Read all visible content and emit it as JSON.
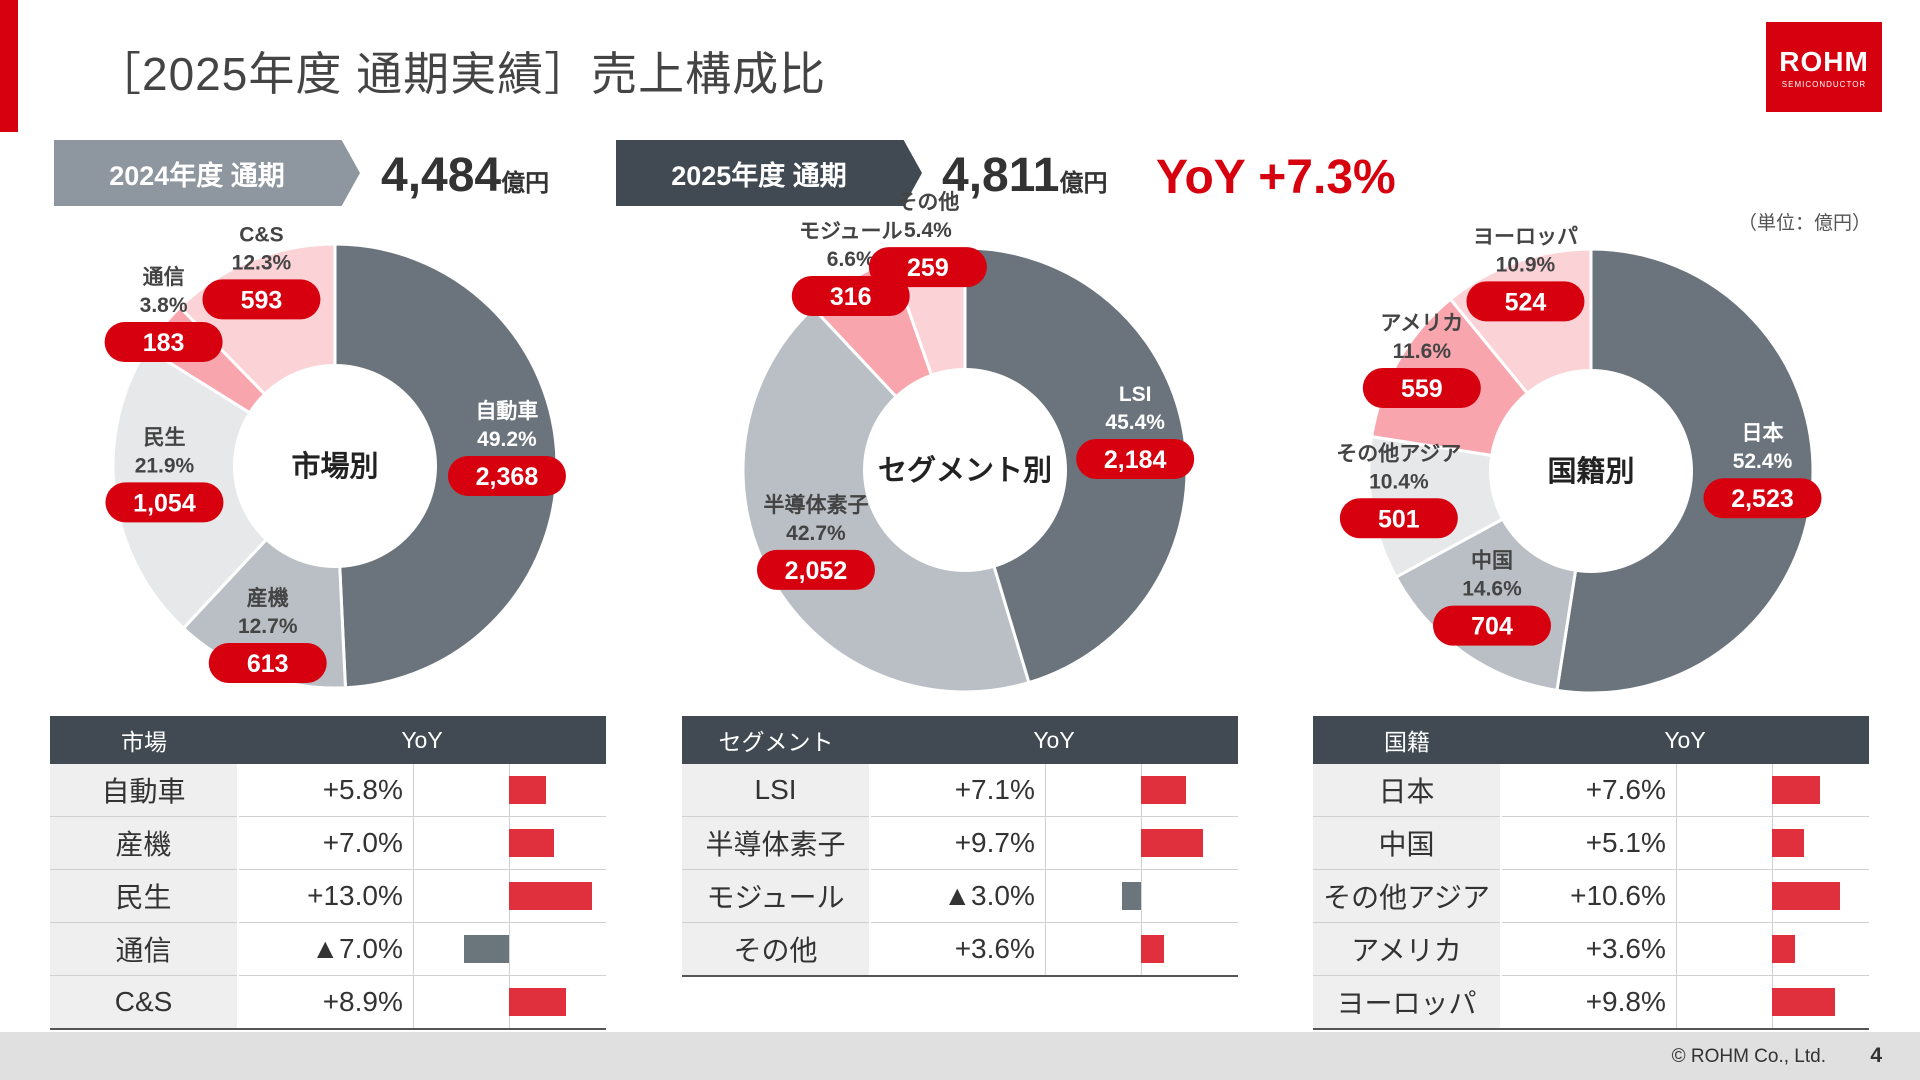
{
  "title": "［2025年度 通期実績］売上構成比",
  "logo": {
    "main": "ROHM",
    "sub": "SEMICONDUCTOR"
  },
  "header": {
    "prev_label": "2024年度 通期",
    "prev_total": "4,484",
    "curr_label": "2025年度 通期",
    "curr_total": "4,811",
    "unit": "億円",
    "yoy": "YoY +7.3%"
  },
  "unit_note": "（単位：億円）",
  "colors": {
    "accent": "#d7000f",
    "dark": "#6b747c",
    "light_gray": "#b9bfc5",
    "pale_gray": "#e6e8ea",
    "pink": "#f8a5ad",
    "pale_pink": "#fbd3d7"
  },
  "chart_data": [
    {
      "type": "pie",
      "center_label": "市場別",
      "slices": [
        {
          "name": "自動車",
          "pct": 49.2,
          "value": 2368,
          "value_label": "2,368",
          "pct_label": "49.2%",
          "color": "#6b747c"
        },
        {
          "name": "産機",
          "pct": 12.7,
          "value": 613,
          "value_label": "613",
          "pct_label": "12.7%",
          "color": "#b9bfc5"
        },
        {
          "name": "民生",
          "pct": 21.9,
          "value": 1054,
          "value_label": "1,054",
          "pct_label": "21.9%",
          "color": "#e6e8ea"
        },
        {
          "name": "通信",
          "pct": 3.8,
          "value": 183,
          "value_label": "183",
          "pct_label": "3.8%",
          "color": "#f8a5ad"
        },
        {
          "name": "C&S",
          "pct": 12.3,
          "value": 593,
          "value_label": "593",
          "pct_label": "12.3%",
          "color": "#fbd3d7"
        }
      ]
    },
    {
      "type": "pie",
      "center_label": "セグメント別",
      "slices": [
        {
          "name": "LSI",
          "pct": 45.4,
          "value": 2184,
          "value_label": "2,184",
          "pct_label": "45.4%",
          "color": "#6b747c"
        },
        {
          "name": "半導体素子",
          "pct": 42.7,
          "value": 2052,
          "value_label": "2,052",
          "pct_label": "42.7%",
          "color": "#b9bfc5"
        },
        {
          "name": "モジュール",
          "pct": 6.6,
          "value": 316,
          "value_label": "316",
          "pct_label": "6.6%",
          "color": "#f8a5ad"
        },
        {
          "name": "その他",
          "pct": 5.4,
          "value": 259,
          "value_label": "259",
          "pct_label": "5.4%",
          "color": "#fbd3d7"
        }
      ]
    },
    {
      "type": "pie",
      "center_label": "国籍別",
      "slices": [
        {
          "name": "日本",
          "pct": 52.4,
          "value": 2523,
          "value_label": "2,523",
          "pct_label": "52.4%",
          "color": "#6b747c"
        },
        {
          "name": "中国",
          "pct": 14.6,
          "value": 704,
          "value_label": "704",
          "pct_label": "14.6%",
          "color": "#b9bfc5"
        },
        {
          "name": "その他アジア",
          "pct": 10.4,
          "value": 501,
          "value_label": "501",
          "pct_label": "10.4%",
          "color": "#e6e8ea"
        },
        {
          "name": "アメリカ",
          "pct": 11.6,
          "value": 559,
          "value_label": "559",
          "pct_label": "11.6%",
          "color": "#f8a5ad"
        },
        {
          "name": "ヨーロッパ",
          "pct": 10.9,
          "value": 524,
          "value_label": "524",
          "pct_label": "10.9%",
          "color": "#fbd3d7"
        }
      ]
    },
    {
      "type": "table",
      "headers": [
        "市場",
        "YoY"
      ],
      "rows": [
        {
          "name": "自動車",
          "label": "+5.8%",
          "value": 5.8
        },
        {
          "name": "産機",
          "label": "+7.0%",
          "value": 7.0
        },
        {
          "name": "民生",
          "label": "+13.0%",
          "value": 13.0
        },
        {
          "name": "通信",
          "label": "▲7.0%",
          "value": -7.0
        },
        {
          "name": "C&S",
          "label": "+8.9%",
          "value": 8.9
        }
      ]
    },
    {
      "type": "table",
      "headers": [
        "セグメント",
        "YoY"
      ],
      "rows": [
        {
          "name": "LSI",
          "label": "+7.1%",
          "value": 7.1
        },
        {
          "name": "半導体素子",
          "label": "+9.7%",
          "value": 9.7
        },
        {
          "name": "モジュール",
          "label": "▲3.0%",
          "value": -3.0
        },
        {
          "name": "その他",
          "label": "+3.6%",
          "value": 3.6
        }
      ]
    },
    {
      "type": "table",
      "headers": [
        "国籍",
        "YoY"
      ],
      "rows": [
        {
          "name": "日本",
          "label": "+7.6%",
          "value": 7.6
        },
        {
          "name": "中国",
          "label": "+5.1%",
          "value": 5.1
        },
        {
          "name": "その他アジア",
          "label": "+10.6%",
          "value": 10.6
        },
        {
          "name": "アメリカ",
          "label": "+3.6%",
          "value": 3.6
        },
        {
          "name": "ヨーロッパ",
          "label": "+9.8%",
          "value": 9.8
        }
      ]
    }
  ],
  "footer": {
    "copyright": "© ROHM Co., Ltd.",
    "page": "4"
  }
}
